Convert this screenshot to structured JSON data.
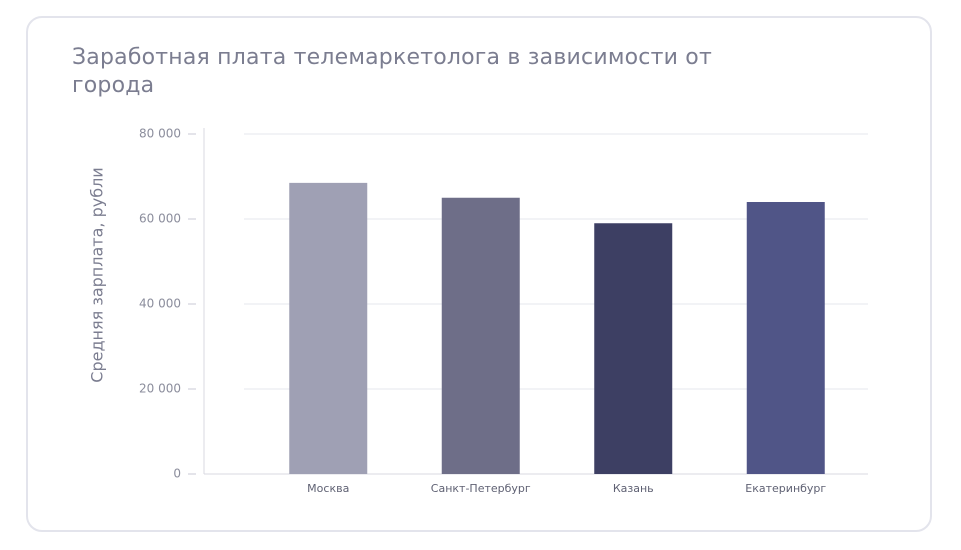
{
  "chart_data": {
    "type": "bar",
    "title": "Заработная плата телемаркетолога в зависимости от города",
    "xlabel": "",
    "ylabel": "Средняя зарплата, рубли",
    "categories": [
      "Москва",
      "Санкт-Петербург",
      "Казань",
      "Екатеринбург"
    ],
    "values": [
      68500,
      65000,
      59000,
      64000
    ],
    "colors": [
      "#9fa0b4",
      "#6e6e88",
      "#3d3f63",
      "#505587"
    ],
    "ylim": [
      0,
      80000
    ],
    "yticks": [
      0,
      20000,
      40000,
      60000,
      80000
    ],
    "ytick_labels": [
      "0",
      "20 000",
      "40 000",
      "60 000",
      "80 000"
    ],
    "grid": true,
    "legend": "none"
  }
}
